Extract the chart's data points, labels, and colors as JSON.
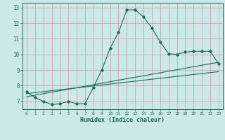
{
  "xlabel": "Humidex (Indice chaleur)",
  "bg_color": "#cce8e8",
  "grid_color": "#cc9999",
  "line_color": "#1a6b5a",
  "xlim": [
    -0.5,
    23.5
  ],
  "ylim": [
    6.5,
    13.3
  ],
  "xticks": [
    0,
    1,
    2,
    3,
    4,
    5,
    6,
    7,
    8,
    9,
    10,
    11,
    12,
    13,
    14,
    15,
    16,
    17,
    18,
    19,
    20,
    21,
    22,
    23
  ],
  "yticks": [
    7,
    8,
    9,
    10,
    11,
    12,
    13
  ],
  "line1_x": [
    0,
    1,
    2,
    3,
    4,
    5,
    6,
    7,
    8,
    9,
    10,
    11,
    12,
    13,
    14,
    15,
    16,
    17,
    18,
    19,
    20,
    21,
    22,
    23
  ],
  "line1_y": [
    7.6,
    7.25,
    7.0,
    6.8,
    6.85,
    7.0,
    6.85,
    6.85,
    7.9,
    9.0,
    10.4,
    11.4,
    12.85,
    12.85,
    12.4,
    11.7,
    10.8,
    10.05,
    10.0,
    10.15,
    10.2,
    10.2,
    10.2,
    9.4
  ],
  "line2_x": [
    0,
    23
  ],
  "line2_y": [
    7.3,
    9.5
  ],
  "line3_x": [
    0,
    23
  ],
  "line3_y": [
    7.5,
    8.9
  ]
}
